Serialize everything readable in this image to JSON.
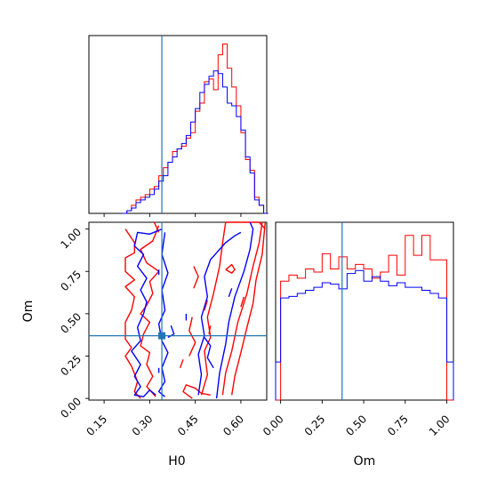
{
  "chart_data": [
    {
      "type": "histogram",
      "panel": "H0 marginal",
      "truth": 0.34,
      "bin_edges": [
        0.21,
        0.225,
        0.24,
        0.255,
        0.27,
        0.285,
        0.3,
        0.315,
        0.33,
        0.345,
        0.36,
        0.375,
        0.39,
        0.405,
        0.42,
        0.435,
        0.45,
        0.465,
        0.48,
        0.495,
        0.51,
        0.525,
        0.54,
        0.555,
        0.57,
        0.585,
        0.6,
        0.615,
        0.63,
        0.645,
        0.66,
        0.675,
        0.69
      ],
      "series": [
        {
          "color": "#ff0000",
          "values": [
            0,
            1,
            3,
            5,
            6,
            7,
            9,
            10,
            14,
            17,
            19,
            23,
            24,
            25,
            28,
            30,
            38,
            41,
            49,
            50,
            46,
            59,
            63,
            54,
            47,
            40,
            30,
            20,
            16,
            6,
            3,
            0
          ]
        },
        {
          "color": "#0000ff",
          "values": [
            0,
            1,
            2,
            4,
            5,
            6,
            7,
            9,
            12,
            14,
            19,
            21,
            24,
            26,
            29,
            34,
            39,
            45,
            48,
            51,
            53,
            52,
            47,
            41,
            40,
            36,
            31,
            21,
            15,
            5,
            3,
            0
          ]
        }
      ]
    },
    {
      "type": "contour",
      "panel": "H0 vs Om",
      "xlabel": "H0",
      "ylabel": "Om",
      "xlim": [
        0.1,
        0.685
      ],
      "ylim": [
        -0.01,
        1.04
      ],
      "xticks": [
        "0.15",
        "0.30",
        "0.45",
        "0.60"
      ],
      "xtick_values": [
        0.15,
        0.3,
        0.45,
        0.6
      ],
      "yticks": [
        "0.00",
        "0.25",
        "0.50",
        "0.75",
        "1.00"
      ],
      "ytick_values": [
        0.0,
        0.25,
        0.5,
        0.75,
        1.0
      ],
      "truth": {
        "H0": 0.34,
        "Om": 0.37
      },
      "series": [
        {
          "color": "#ff0000",
          "contours": [
            [
              [
                0.33,
                1.02
              ],
              [
                0.31,
                0.93
              ],
              [
                0.27,
                0.88
              ],
              [
                0.29,
                0.8
              ],
              [
                0.33,
                0.75
              ],
              [
                0.3,
                0.69
              ],
              [
                0.31,
                0.62
              ],
              [
                0.29,
                0.55
              ],
              [
                0.27,
                0.5
              ],
              [
                0.3,
                0.45
              ],
              [
                0.28,
                0.38
              ],
              [
                0.27,
                0.31
              ],
              [
                0.3,
                0.27
              ],
              [
                0.29,
                0.2
              ],
              [
                0.31,
                0.13
              ],
              [
                0.29,
                0.07
              ],
              [
                0.32,
                0.01
              ]
            ],
            [
              [
                0.22,
                1.0
              ],
              [
                0.25,
                0.92
              ],
              [
                0.25,
                0.86
              ],
              [
                0.22,
                0.83
              ],
              [
                0.22,
                0.75
              ],
              [
                0.25,
                0.7
              ],
              [
                0.22,
                0.66
              ],
              [
                0.25,
                0.6
              ],
              [
                0.24,
                0.52
              ],
              [
                0.22,
                0.45
              ],
              [
                0.22,
                0.35
              ],
              [
                0.24,
                0.3
              ],
              [
                0.22,
                0.25
              ],
              [
                0.24,
                0.19
              ],
              [
                0.26,
                0.1
              ],
              [
                0.25,
                0.04
              ],
              [
                0.27,
                0.0
              ]
            ],
            [
              [
                0.44,
                0.0
              ],
              [
                0.41,
                0.04
              ],
              [
                0.42,
                0.08
              ],
              [
                0.45,
                0.06
              ],
              [
                0.47,
                0.03
              ],
              [
                0.5,
                0.02
              ]
            ],
            [
              [
                0.54,
                0.02
              ],
              [
                0.55,
                0.15
              ],
              [
                0.57,
                0.28
              ],
              [
                0.59,
                0.45
              ],
              [
                0.62,
                0.62
              ],
              [
                0.64,
                0.78
              ],
              [
                0.66,
                0.92
              ],
              [
                0.67,
                1.04
              ]
            ],
            [
              [
                0.57,
                0.02
              ],
              [
                0.58,
                0.13
              ],
              [
                0.6,
                0.27
              ],
              [
                0.62,
                0.42
              ],
              [
                0.64,
                0.56
              ],
              [
                0.65,
                0.7
              ],
              [
                0.67,
                0.85
              ],
              [
                0.68,
                1.04
              ]
            ],
            [
              [
                0.47,
                0.02
              ],
              [
                0.49,
                0.14
              ],
              [
                0.48,
                0.28
              ],
              [
                0.5,
                0.36
              ],
              [
                0.49,
                0.48
              ],
              [
                0.51,
                0.62
              ],
              [
                0.53,
                0.78
              ],
              [
                0.54,
                0.92
              ],
              [
                0.55,
                1.04
              ],
              [
                0.66,
                1.04
              ],
              [
                0.68,
                1.0
              ]
            ],
            [
              [
                0.43,
                0.25
              ],
              [
                0.45,
                0.33
              ],
              [
                0.43,
                0.4
              ],
              [
                0.44,
                0.48
              ]
            ],
            [
              [
                0.445,
                0.65
              ],
              [
                0.46,
                0.72
              ],
              [
                0.445,
                0.78
              ]
            ],
            [
              [
                0.48,
                0.52
              ],
              [
                0.49,
                0.58
              ]
            ],
            [
              [
                0.33,
                0.98
              ],
              [
                0.315,
                1.04
              ]
            ],
            [
              [
                0.495,
                0.38
              ],
              [
                0.5,
                0.43
              ]
            ],
            [
              [
                0.55,
                0.76
              ],
              [
                0.57,
                0.79
              ],
              [
                0.58,
                0.76
              ],
              [
                0.57,
                0.74
              ],
              [
                0.55,
                0.76
              ]
            ],
            [
              [
                0.6,
                0.54
              ],
              [
                0.61,
                0.6
              ]
            ],
            [
              [
                0.4,
                0.18
              ],
              [
                0.41,
                0.23
              ]
            ]
          ]
        },
        {
          "color": "#0000ff",
          "contours": [
            [
              [
                0.34,
                1.0
              ],
              [
                0.3,
                0.97
              ],
              [
                0.26,
                0.98
              ],
              [
                0.25,
                0.9
              ],
              [
                0.28,
                0.85
              ],
              [
                0.26,
                0.78
              ],
              [
                0.29,
                0.71
              ],
              [
                0.27,
                0.64
              ],
              [
                0.29,
                0.57
              ],
              [
                0.28,
                0.5
              ],
              [
                0.26,
                0.42
              ],
              [
                0.27,
                0.34
              ],
              [
                0.24,
                0.28
              ],
              [
                0.27,
                0.2
              ],
              [
                0.25,
                0.13
              ],
              [
                0.27,
                0.07
              ],
              [
                0.25,
                0.02
              ],
              [
                0.28,
                0.01
              ],
              [
                0.3,
                0.05
              ],
              [
                0.32,
                0.02
              ]
            ],
            [
              [
                0.35,
                0.98
              ],
              [
                0.34,
                0.85
              ],
              [
                0.36,
                0.74
              ],
              [
                0.34,
                0.64
              ],
              [
                0.35,
                0.52
              ],
              [
                0.33,
                0.44
              ],
              [
                0.34,
                0.34
              ],
              [
                0.36,
                0.27
              ],
              [
                0.34,
                0.18
              ],
              [
                0.35,
                0.1
              ],
              [
                0.33,
                0.04
              ],
              [
                0.35,
                0.01
              ]
            ],
            [
              [
                0.52,
                0.0
              ],
              [
                0.53,
                0.15
              ],
              [
                0.55,
                0.32
              ],
              [
                0.56,
                0.45
              ],
              [
                0.58,
                0.6
              ],
              [
                0.61,
                0.75
              ],
              [
                0.63,
                0.88
              ],
              [
                0.64,
                1.0
              ],
              [
                0.63,
                1.04
              ]
            ],
            [
              [
                0.46,
                0.02
              ],
              [
                0.47,
                0.14
              ],
              [
                0.46,
                0.26
              ],
              [
                0.48,
                0.37
              ],
              [
                0.47,
                0.48
              ],
              [
                0.49,
                0.6
              ],
              [
                0.48,
                0.72
              ],
              [
                0.5,
                0.82
              ],
              [
                0.52,
                0.86
              ],
              [
                0.55,
                0.92
              ],
              [
                0.58,
                0.96
              ],
              [
                0.6,
                0.98
              ]
            ],
            [
              [
                0.48,
                0.36
              ],
              [
                0.5,
                0.31
              ],
              [
                0.49,
                0.24
              ],
              [
                0.51,
                0.18
              ]
            ],
            [
              [
                0.36,
                0.36
              ],
              [
                0.38,
                0.38
              ],
              [
                0.37,
                0.43
              ]
            ],
            [
              [
                0.33,
                0.15
              ],
              [
                0.33,
                0.18
              ]
            ],
            [
              [
                0.33,
                0.73
              ],
              [
                0.33,
                0.76
              ]
            ],
            [
              [
                0.42,
                0.46
              ],
              [
                0.42,
                0.5
              ]
            ],
            [
              [
                0.56,
                0.6
              ],
              [
                0.57,
                0.65
              ]
            ]
          ]
        }
      ]
    },
    {
      "type": "histogram",
      "panel": "Om marginal",
      "xlabel": "Om",
      "xlim": [
        -0.03,
        1.04
      ],
      "xticks": [
        "0.00",
        "0.25",
        "0.50",
        "0.75",
        "1.00"
      ],
      "xtick_values": [
        0.0,
        0.25,
        0.5,
        0.75,
        1.0
      ],
      "truth": 0.37,
      "bin_edges": [
        -0.03,
        0.0,
        0.05,
        0.1,
        0.15,
        0.2,
        0.25,
        0.3,
        0.35,
        0.4,
        0.45,
        0.5,
        0.55,
        0.6,
        0.65,
        0.7,
        0.75,
        0.8,
        0.85,
        0.9,
        0.95,
        1.0,
        1.04
      ],
      "series": [
        {
          "color": "#ff0000",
          "values": [
            0,
            78,
            82,
            80,
            86,
            84,
            96,
            86,
            94,
            86,
            89,
            86,
            80,
            84,
            95,
            82,
            108,
            95,
            108,
            92,
            92,
            0
          ]
        },
        {
          "color": "#0000ff",
          "values": [
            25,
            67,
            68,
            70,
            72,
            74,
            77,
            76,
            73,
            83,
            85,
            78,
            81,
            78,
            75,
            77,
            74,
            74,
            72,
            70,
            67,
            25
          ]
        }
      ]
    }
  ]
}
